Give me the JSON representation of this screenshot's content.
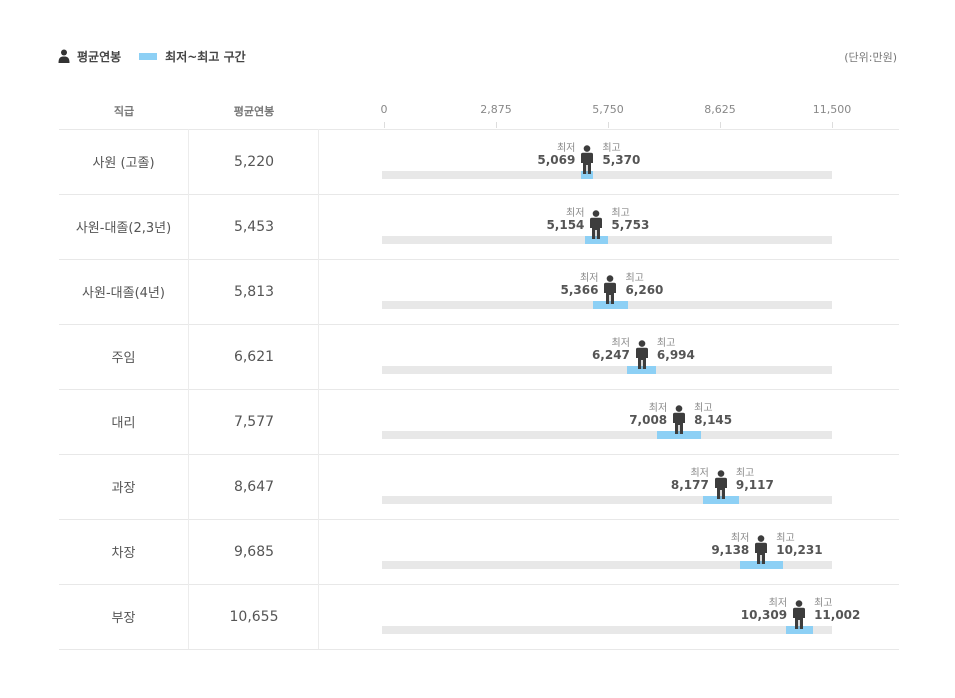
{
  "legend": {
    "avg_label": "평균연봉",
    "range_label": "최저~최고 구간",
    "unit": "(단위:만원)"
  },
  "table": {
    "col_rank": "직급",
    "col_avg": "평균연봉",
    "min_label": "최저",
    "max_label": "최고"
  },
  "chart_data": {
    "type": "bar",
    "categories": [
      "사원 (고졸)",
      "사원-대졸(2,3년)",
      "사원-대졸(4년)",
      "주임",
      "대리",
      "과장",
      "차장",
      "부장"
    ],
    "series": [
      {
        "name": "평균연봉",
        "values": [
          5220,
          5453,
          5813,
          6621,
          7577,
          8647,
          9685,
          10655
        ]
      },
      {
        "name": "최저",
        "values": [
          5069,
          5154,
          5366,
          6247,
          7008,
          8177,
          9138,
          10309
        ]
      },
      {
        "name": "최고",
        "values": [
          5370,
          5753,
          6260,
          6994,
          8145,
          9117,
          10231,
          11002
        ]
      }
    ],
    "avg_text": [
      "5,220",
      "5,453",
      "5,813",
      "6,621",
      "7,577",
      "8,647",
      "9,685",
      "10,655"
    ],
    "min_text": [
      "5,069",
      "5,154",
      "5,366",
      "6,247",
      "7,008",
      "8,177",
      "9,138",
      "10,309"
    ],
    "max_text": [
      "5,370",
      "5,753",
      "6,260",
      "6,994",
      "8,145",
      "9,117",
      "10,231",
      "11,002"
    ],
    "xlim": [
      0,
      11500
    ],
    "ticks": [
      0,
      2875,
      5750,
      8625,
      11500
    ],
    "tick_labels": [
      "0",
      "2,875",
      "5,750",
      "8,625",
      "11,500"
    ],
    "colors": {
      "range": "#8dd0f5",
      "track": "#e8e8e8",
      "person": "#3d3d3d"
    }
  }
}
